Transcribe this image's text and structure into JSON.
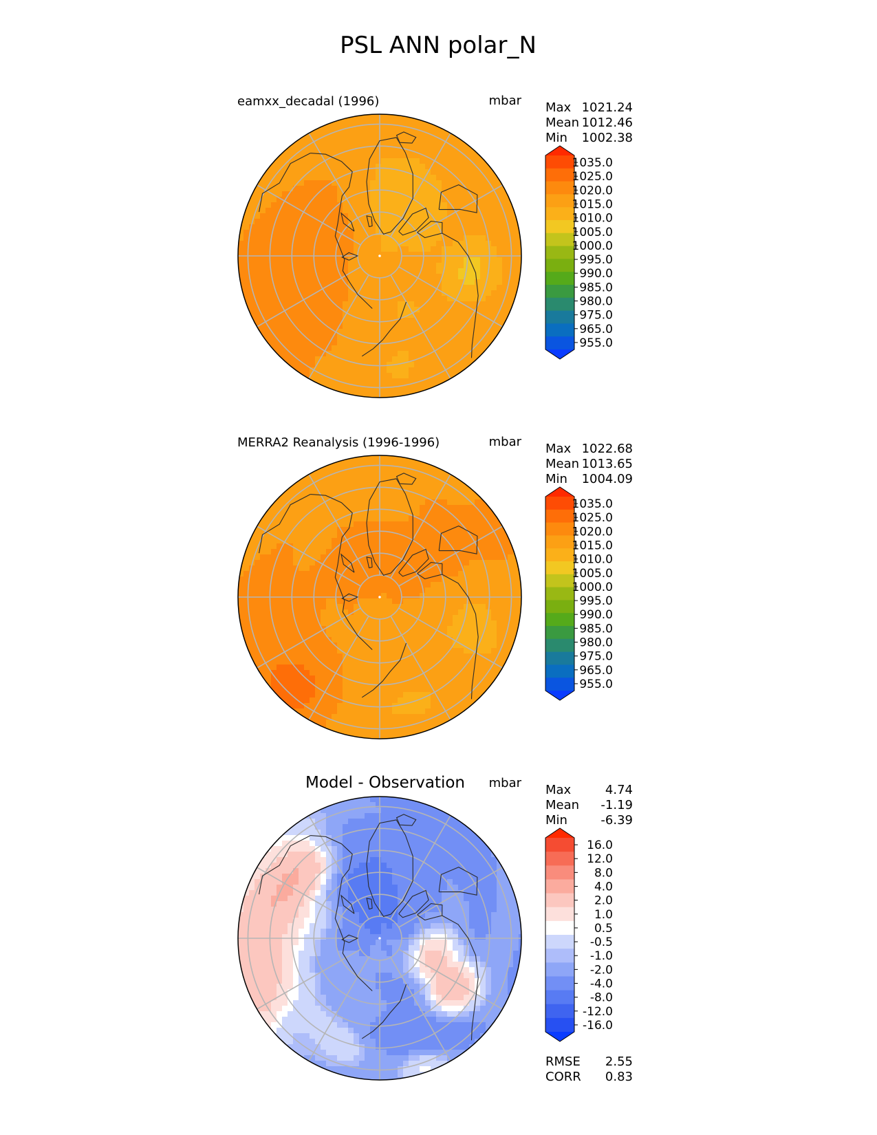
{
  "figure": {
    "title": "PSL ANN polar_N"
  },
  "colors": {
    "psl_levels": [
      "#0a3cff",
      "#0a55e0",
      "#0a6ec0",
      "#197a9c",
      "#2a8a6e",
      "#3a9a40",
      "#55aa1a",
      "#7aaf10",
      "#99b814",
      "#c3c41c",
      "#f2c822",
      "#fbb019",
      "#fca014",
      "#fd8a0e",
      "#fe6e08",
      "#fe4c04",
      "#ff2a00"
    ],
    "diff_levels": [
      "#0a3cff",
      "#2750f2",
      "#3f64f0",
      "#587bf3",
      "#728ff5",
      "#8ea6f7",
      "#aebdfa",
      "#cdd7fc",
      "#ffffff",
      "#fde0dc",
      "#fcc7bf",
      "#fbab9e",
      "#f98c7c",
      "#f76c56",
      "#f54c32",
      "#ff2a00"
    ],
    "grid": "#b5b5b5",
    "coast": "#2b2b2b"
  },
  "panels": [
    {
      "id": "test",
      "title": "eamxx_decadal (1996)",
      "units": "mbar",
      "stats": [
        {
          "label": "Max",
          "value": "1021.24"
        },
        {
          "label": "Mean",
          "value": "1012.46"
        },
        {
          "label": "Min",
          "value": "1002.38"
        }
      ],
      "colorbar_ticks": [
        "1035.0",
        "1025.0",
        "1020.0",
        "1015.0",
        "1010.0",
        "1005.0",
        "1000.0",
        "995.0",
        "990.0",
        "985.0",
        "980.0",
        "975.0",
        "965.0",
        "955.0"
      ],
      "field": {
        "base": 1012.5,
        "blobs": [
          {
            "lon": 10,
            "colat": 18,
            "amp": -4.5,
            "size": 16
          },
          {
            "lon": 30,
            "colat": 30,
            "amp": -4.0,
            "size": 14
          },
          {
            "lon": -45,
            "colat": 22,
            "amp": 4.0,
            "size": 16
          },
          {
            "lon": -90,
            "colat": 42,
            "amp": 5.0,
            "size": 18
          },
          {
            "lon": 100,
            "colat": 42,
            "amp": -8.5,
            "size": 9
          },
          {
            "lon": 140,
            "colat": 55,
            "amp": 2.5,
            "size": 10
          },
          {
            "lon": -135,
            "colat": 60,
            "amp": 5.5,
            "size": 22
          },
          {
            "lon": 170,
            "colat": 55,
            "amp": -3.0,
            "size": 10
          },
          {
            "lon": -160,
            "colat": 56,
            "amp": -3.5,
            "size": 10
          },
          {
            "lon": 150,
            "colat": 30,
            "amp": -2.5,
            "size": 12
          }
        ]
      }
    },
    {
      "id": "ref",
      "title": "MERRA2 Reanalysis (1996-1996)",
      "units": "mbar",
      "stats": [
        {
          "label": "Max",
          "value": "1022.68"
        },
        {
          "label": "Mean",
          "value": "1013.65"
        },
        {
          "label": "Min",
          "value": "1004.09"
        }
      ],
      "colorbar_ticks": [
        "1035.0",
        "1025.0",
        "1020.0",
        "1015.0",
        "1010.0",
        "1005.0",
        "1000.0",
        "995.0",
        "990.0",
        "985.0",
        "980.0",
        "975.0",
        "965.0",
        "955.0"
      ],
      "field": {
        "base": 1013.5,
        "blobs": [
          {
            "lon": 40,
            "colat": 20,
            "amp": 3.0,
            "size": 18
          },
          {
            "lon": -30,
            "colat": 15,
            "amp": 2.5,
            "size": 16
          },
          {
            "lon": -100,
            "colat": 50,
            "amp": 4.0,
            "size": 18
          },
          {
            "lon": -140,
            "colat": 58,
            "amp": 7.0,
            "size": 14
          },
          {
            "lon": 110,
            "colat": 45,
            "amp": -5.0,
            "size": 13
          },
          {
            "lon": 160,
            "colat": 52,
            "amp": -3.5,
            "size": 12
          },
          {
            "lon": -170,
            "colat": 58,
            "amp": -3.5,
            "size": 10
          },
          {
            "lon": 60,
            "colat": 52,
            "amp": 2.0,
            "size": 14
          }
        ]
      }
    },
    {
      "id": "diff",
      "title": "Model - Observation",
      "units": "mbar",
      "stats": [
        {
          "label": "Max",
          "value": "4.74"
        },
        {
          "label": "Mean",
          "value": "-1.19"
        },
        {
          "label": "Min",
          "value": "-6.39"
        }
      ],
      "colorbar_ticks": [
        "16.0",
        "12.0",
        "8.0",
        "4.0",
        "2.0",
        "1.0",
        "0.5",
        "-0.5",
        "-1.0",
        "-2.0",
        "-4.0",
        "-8.0",
        "-12.0",
        "-16.0"
      ],
      "extra_stats": [
        {
          "label": "RMSE",
          "value": "2.55"
        },
        {
          "label": "CORR",
          "value": "0.83"
        }
      ],
      "field": {
        "base": -1.6,
        "blobs": [
          {
            "lon": 0,
            "colat": 12,
            "amp": -2.8,
            "size": 14
          },
          {
            "lon": -20,
            "colat": 30,
            "amp": -2.2,
            "size": 15
          },
          {
            "lon": -75,
            "colat": 52,
            "amp": 4.8,
            "size": 16
          },
          {
            "lon": -45,
            "colat": 46,
            "amp": 3.5,
            "size": 11
          },
          {
            "lon": -110,
            "colat": 60,
            "amp": 4.2,
            "size": 14
          },
          {
            "lon": 100,
            "colat": 24,
            "amp": 3.2,
            "size": 8
          },
          {
            "lon": 125,
            "colat": 40,
            "amp": 5.5,
            "size": 9
          },
          {
            "lon": 150,
            "colat": 50,
            "amp": -2.5,
            "size": 14
          },
          {
            "lon": 40,
            "colat": 55,
            "amp": -1.5,
            "size": 16
          },
          {
            "lon": 160,
            "colat": 62,
            "amp": 3.2,
            "size": 8
          },
          {
            "lon": -160,
            "colat": 52,
            "amp": 1.5,
            "size": 10
          }
        ]
      }
    }
  ]
}
